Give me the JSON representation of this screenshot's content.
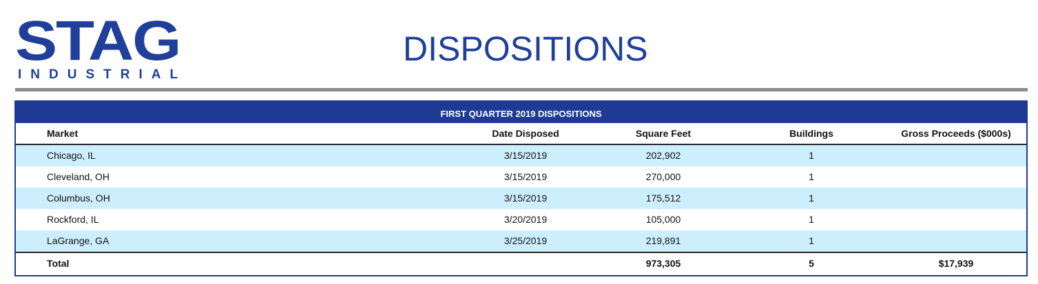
{
  "header": {
    "logo": {
      "main": "STAG",
      "sub": "INDUSTRIAL"
    },
    "title": "DISPOSITIONS"
  },
  "table": {
    "title": "FIRST QUARTER 2019 DISPOSITIONS",
    "columns": [
      "Market",
      "Date Disposed",
      "Square Feet",
      "Buildings",
      "Gross Proceeds ($000s)"
    ],
    "rows": [
      {
        "market": "Chicago, IL",
        "date": "3/15/2019",
        "sqft": "202,902",
        "buildings": "1",
        "gross": ""
      },
      {
        "market": "Cleveland, OH",
        "date": "3/15/2019",
        "sqft": "270,000",
        "buildings": "1",
        "gross": ""
      },
      {
        "market": "Columbus, OH",
        "date": "3/15/2019",
        "sqft": "175,512",
        "buildings": "1",
        "gross": ""
      },
      {
        "market": "Rockford, IL",
        "date": "3/20/2019",
        "sqft": "105,000",
        "buildings": "1",
        "gross": ""
      },
      {
        "market": "LaGrange, GA",
        "date": "3/25/2019",
        "sqft": "219,891",
        "buildings": "1",
        "gross": ""
      }
    ],
    "total": {
      "label": "Total",
      "date": "",
      "sqft": "973,305",
      "buildings": "5",
      "gross": "$17,939"
    }
  },
  "colors": {
    "brand": "#1f3a93",
    "row_shade": "#cdeefc",
    "rule": "#8c8c8c"
  }
}
